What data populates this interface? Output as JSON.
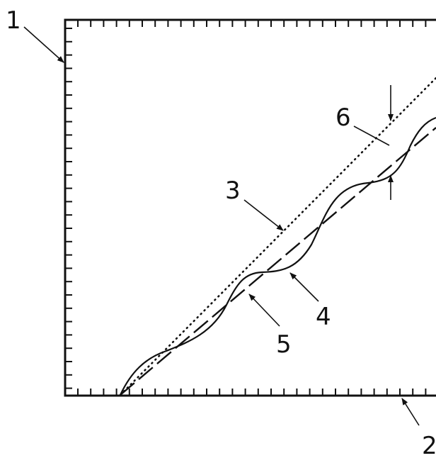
{
  "labels": {
    "frame_vertical": "1",
    "frame_horizontal": "2",
    "ideal_line": "3",
    "measured_curve": "4",
    "fitted_line": "5",
    "deviation": "6"
  }
}
